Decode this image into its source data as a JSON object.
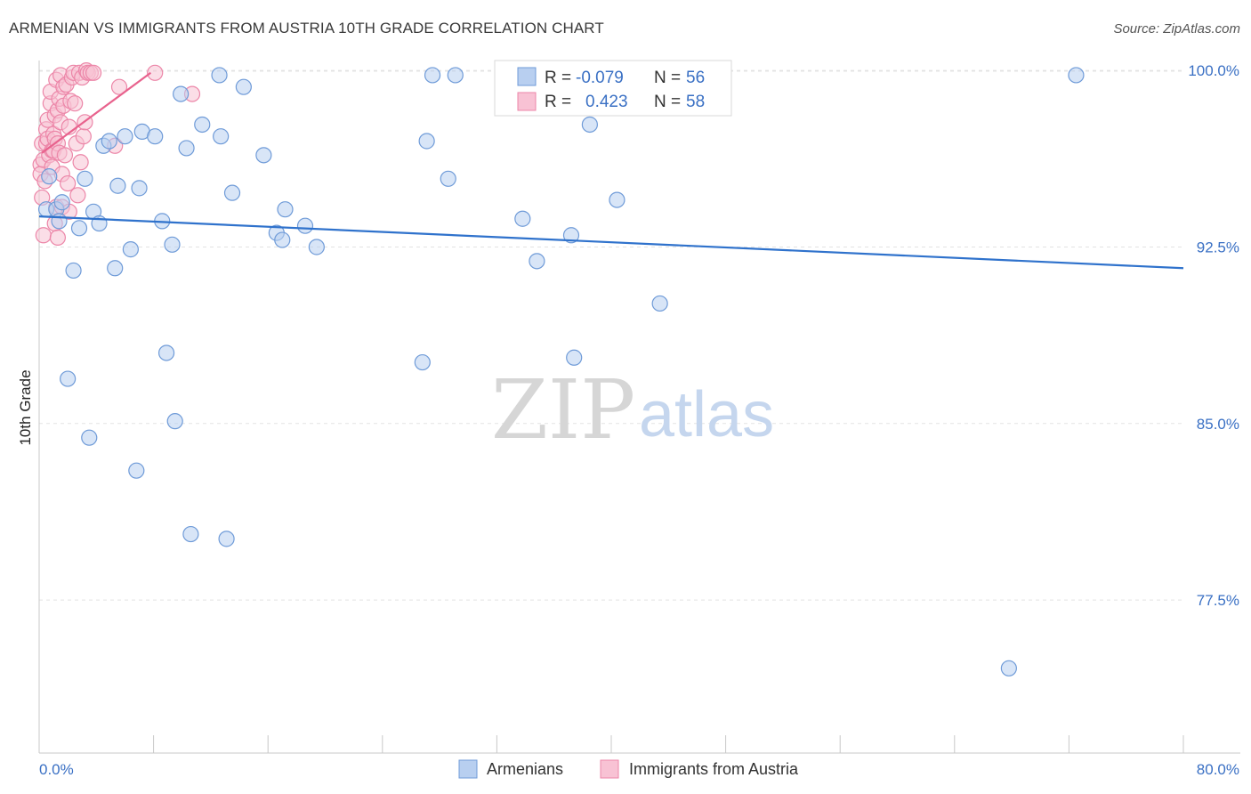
{
  "title": "ARMENIAN VS IMMIGRANTS FROM AUSTRIA 10TH GRADE CORRELATION CHART",
  "source": "Source: ZipAtlas.com",
  "watermark": {
    "zip": "ZIP",
    "atlas": "atlas"
  },
  "colors": {
    "blue_fill": "#b8cff0",
    "blue_stroke": "#6f9bd8",
    "blue_line": "#2f72cc",
    "pink_fill": "#f8c2d4",
    "pink_stroke": "#ec86a8",
    "pink_line": "#e8628d",
    "grid": "#e3e3e3",
    "tick_text": "#3a70c4"
  },
  "legend_top": {
    "rows": [
      {
        "r_label": "R =",
        "r_value": "-0.079",
        "n_label": "N =",
        "n_value": "56",
        "color": "blue"
      },
      {
        "r_label": "R =",
        "r_value": "0.423",
        "n_label": "N =",
        "n_value": "58",
        "color": "pink"
      }
    ]
  },
  "legend_bottom": [
    "Armenians",
    "Immigrants from Austria"
  ],
  "chart_data": {
    "type": "scatter",
    "title": "ARMENIAN VS IMMIGRANTS FROM AUSTRIA 10TH GRADE CORRELATION CHART",
    "xlabel": "",
    "ylabel": "10th Grade",
    "xlim": [
      0,
      80
    ],
    "ylim": [
      71.0,
      100.8
    ],
    "x_tick_labels": [
      "0.0%",
      "80.0%"
    ],
    "y_ticks": [
      100.0,
      92.5,
      85.0,
      77.5
    ],
    "y_tick_labels": [
      "100.0%",
      "92.5%",
      "85.0%",
      "77.5%"
    ],
    "grid": true,
    "legend_placement": "bottom",
    "series": [
      {
        "name": "Armenians",
        "color": "blue",
        "r": -0.079,
        "n": 56,
        "trend": {
          "x": [
            0,
            80
          ],
          "y": [
            93.8,
            91.6
          ]
        },
        "points": [
          [
            0.5,
            94.1
          ],
          [
            0.7,
            95.5
          ],
          [
            1.2,
            94.1
          ],
          [
            1.4,
            93.6
          ],
          [
            1.6,
            94.4
          ],
          [
            2.0,
            86.9
          ],
          [
            2.4,
            91.5
          ],
          [
            2.8,
            93.3
          ],
          [
            3.2,
            95.4
          ],
          [
            3.5,
            84.4
          ],
          [
            3.8,
            94.0
          ],
          [
            4.2,
            93.5
          ],
          [
            4.5,
            96.8
          ],
          [
            4.9,
            97.0
          ],
          [
            5.3,
            91.6
          ],
          [
            5.5,
            95.1
          ],
          [
            6.0,
            97.2
          ],
          [
            6.4,
            92.4
          ],
          [
            6.8,
            83.0
          ],
          [
            7.0,
            95.0
          ],
          [
            7.2,
            97.4
          ],
          [
            8.1,
            97.2
          ],
          [
            8.6,
            93.6
          ],
          [
            8.9,
            88.0
          ],
          [
            9.3,
            92.6
          ],
          [
            9.5,
            85.1
          ],
          [
            9.9,
            99.0
          ],
          [
            10.3,
            96.7
          ],
          [
            10.6,
            80.3
          ],
          [
            11.4,
            97.7
          ],
          [
            12.6,
            99.8
          ],
          [
            12.7,
            97.2
          ],
          [
            13.1,
            80.1
          ],
          [
            13.5,
            94.8
          ],
          [
            14.3,
            99.3
          ],
          [
            15.7,
            96.4
          ],
          [
            16.6,
            93.1
          ],
          [
            17.0,
            92.8
          ],
          [
            17.2,
            94.1
          ],
          [
            18.6,
            93.4
          ],
          [
            19.4,
            92.5
          ],
          [
            26.8,
            87.6
          ],
          [
            27.1,
            97.0
          ],
          [
            27.5,
            99.8
          ],
          [
            28.6,
            95.4
          ],
          [
            29.1,
            99.8
          ],
          [
            32.6,
            99.8
          ],
          [
            33.8,
            93.7
          ],
          [
            34.8,
            91.9
          ],
          [
            37.2,
            93.0
          ],
          [
            37.4,
            87.8
          ],
          [
            38.5,
            97.7
          ],
          [
            40.4,
            94.5
          ],
          [
            43.4,
            90.1
          ],
          [
            67.8,
            74.6
          ],
          [
            72.5,
            99.8
          ]
        ]
      },
      {
        "name": "Immigrants from Austria",
        "color": "pink",
        "r": 0.423,
        "n": 58,
        "trend": {
          "x": [
            0.2,
            7.8
          ],
          "y": [
            96.5,
            99.9
          ]
        },
        "points": [
          [
            0.1,
            96.0
          ],
          [
            0.1,
            95.6
          ],
          [
            0.2,
            96.9
          ],
          [
            0.2,
            94.6
          ],
          [
            0.3,
            93.0
          ],
          [
            0.3,
            96.2
          ],
          [
            0.4,
            95.3
          ],
          [
            0.5,
            96.9
          ],
          [
            0.5,
            97.5
          ],
          [
            0.6,
            97.9
          ],
          [
            0.6,
            97.1
          ],
          [
            0.7,
            96.4
          ],
          [
            0.8,
            98.6
          ],
          [
            0.8,
            99.1
          ],
          [
            0.9,
            96.6
          ],
          [
            0.9,
            95.9
          ],
          [
            1.0,
            97.3
          ],
          [
            1.0,
            96.6
          ],
          [
            1.1,
            98.1
          ],
          [
            1.1,
            97.1
          ],
          [
            1.1,
            93.5
          ],
          [
            1.2,
            99.6
          ],
          [
            1.2,
            94.2
          ],
          [
            1.3,
            98.3
          ],
          [
            1.3,
            96.9
          ],
          [
            1.3,
            92.9
          ],
          [
            1.4,
            98.8
          ],
          [
            1.4,
            96.5
          ],
          [
            1.5,
            99.8
          ],
          [
            1.5,
            97.8
          ],
          [
            1.6,
            95.6
          ],
          [
            1.6,
            94.2
          ],
          [
            1.7,
            99.3
          ],
          [
            1.7,
            98.5
          ],
          [
            1.8,
            96.4
          ],
          [
            1.9,
            99.4
          ],
          [
            2.0,
            95.2
          ],
          [
            2.1,
            97.6
          ],
          [
            2.1,
            94.0
          ],
          [
            2.2,
            98.7
          ],
          [
            2.3,
            99.7
          ],
          [
            2.4,
            99.9
          ],
          [
            2.5,
            98.6
          ],
          [
            2.6,
            96.9
          ],
          [
            2.7,
            94.7
          ],
          [
            2.8,
            99.9
          ],
          [
            2.9,
            96.1
          ],
          [
            3.0,
            99.7
          ],
          [
            3.1,
            97.2
          ],
          [
            3.2,
            97.8
          ],
          [
            3.3,
            100.0
          ],
          [
            3.4,
            99.9
          ],
          [
            3.6,
            99.9
          ],
          [
            3.8,
            99.9
          ],
          [
            5.3,
            96.8
          ],
          [
            5.6,
            99.3
          ],
          [
            8.1,
            99.9
          ],
          [
            10.7,
            99.0
          ]
        ]
      }
    ]
  }
}
